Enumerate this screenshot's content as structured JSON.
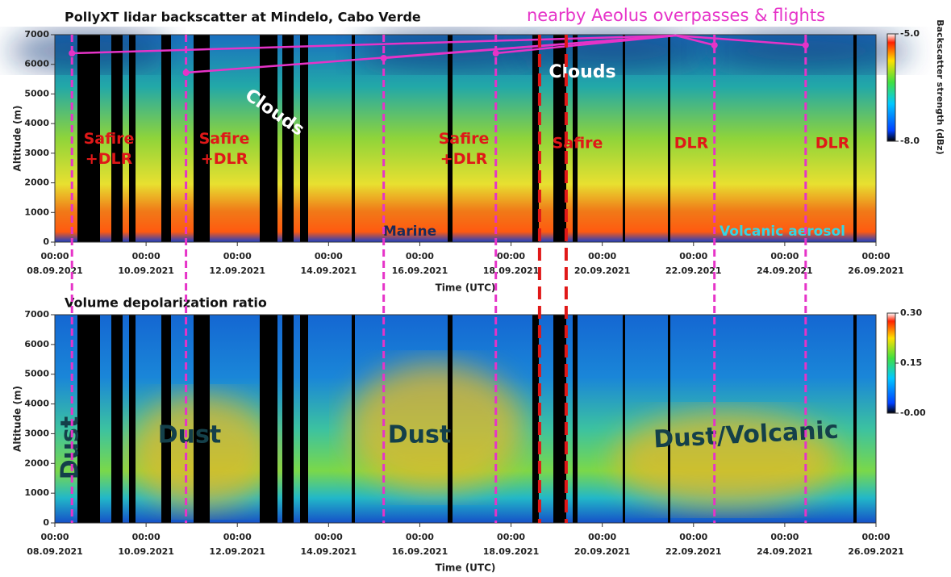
{
  "header": "nearby Aeolus overpasses & flights",
  "overpasses": [
    "2021-09-08T09:00",
    "2021-09-10T21:00",
    "2021-09-15T05:00",
    "2021-09-17T16:00",
    "2021-09-22T11:00",
    "2021-09-24T11:00"
  ],
  "overpass_color": "#e633c8",
  "flight_lines": [
    "2021-09-18T15:00",
    "2021-09-19T05:00"
  ],
  "flight_color": "#e01818",
  "chart_data": [
    {
      "type": "heatmap",
      "title": "PollyXT lidar backscatter at Mindelo, Cabo Verde",
      "xlabel": "Time (UTC)",
      "ylabel": "Altitude (m)",
      "xlim": [
        "2021-09-08T00:00",
        "2021-09-26T00:00"
      ],
      "xticks": [
        {
          "value": "2021-09-08T00:00",
          "label": [
            "00:00",
            "08.09.2021"
          ]
        },
        {
          "value": "2021-09-10T00:00",
          "label": [
            "00:00",
            "10.09.2021"
          ]
        },
        {
          "value": "2021-09-12T00:00",
          "label": [
            "00:00",
            "12.09.2021"
          ]
        },
        {
          "value": "2021-09-14T00:00",
          "label": [
            "00:00",
            "14.09.2021"
          ]
        },
        {
          "value": "2021-09-16T00:00",
          "label": [
            "00:00",
            "16.09.2021"
          ]
        },
        {
          "value": "2021-09-18T00:00",
          "label": [
            "00:00",
            "18.09.2021"
          ]
        },
        {
          "value": "2021-09-20T00:00",
          "label": [
            "00:00",
            "20.09.2021"
          ]
        },
        {
          "value": "2021-09-22T00:00",
          "label": [
            "00:00",
            "22.09.2021"
          ]
        },
        {
          "value": "2021-09-24T00:00",
          "label": [
            "00:00",
            "24.09.2021"
          ]
        },
        {
          "value": "2021-09-26T00:00",
          "label": [
            "00:00",
            "26.09.2021"
          ]
        }
      ],
      "ylim": [
        0,
        7000
      ],
      "yticks": [
        0,
        1000,
        2000,
        3000,
        4000,
        5000,
        6000,
        7000
      ],
      "colorbar_label": "Backscatter strength (dBz)",
      "clim": [
        -8,
        -5
      ],
      "cticks": [
        {
          "value": -8,
          "label": "-8.0"
        },
        {
          "value": -5,
          "label": "-5.0"
        }
      ],
      "annotations": [
        {
          "text": [
            "Clouds"
          ],
          "color": "#ffffff"
        },
        {
          "text": [
            "Clouds"
          ],
          "color": "#ffffff"
        },
        {
          "text": [
            "Safire",
            "+DLR"
          ],
          "color": "#e01818"
        },
        {
          "text": [
            "Safire",
            "+DLR"
          ],
          "color": "#e01818"
        },
        {
          "text": [
            "Safire",
            "+DLR"
          ],
          "color": "#e01818"
        },
        {
          "text": [
            "Safire"
          ],
          "color": "#e01818"
        },
        {
          "text": [
            "DLR"
          ],
          "color": "#e01818"
        },
        {
          "text": [
            "DLR"
          ],
          "color": "#e01818"
        },
        {
          "text": [
            "Marine"
          ],
          "color": "#1a2a5a"
        },
        {
          "text": [
            "Volcanic aerosol"
          ],
          "color": "#33d6e6"
        }
      ]
    },
    {
      "type": "heatmap",
      "title": "Volume depolarization ratio",
      "xlabel": "Time (UTC)",
      "ylabel": "Altitude (m)",
      "xlim": [
        "2021-09-08T00:00",
        "2021-09-26T00:00"
      ],
      "xticks": [
        {
          "value": "2021-09-08T00:00",
          "label": [
            "00:00",
            "08.09.2021"
          ]
        },
        {
          "value": "2021-09-10T00:00",
          "label": [
            "00:00",
            "10.09.2021"
          ]
        },
        {
          "value": "2021-09-12T00:00",
          "label": [
            "00:00",
            "12.09.2021"
          ]
        },
        {
          "value": "2021-09-14T00:00",
          "label": [
            "00:00",
            "14.09.2021"
          ]
        },
        {
          "value": "2021-09-16T00:00",
          "label": [
            "00:00",
            "16.09.2021"
          ]
        },
        {
          "value": "2021-09-18T00:00",
          "label": [
            "00:00",
            "18.09.2021"
          ]
        },
        {
          "value": "2021-09-20T00:00",
          "label": [
            "00:00",
            "20.09.2021"
          ]
        },
        {
          "value": "2021-09-22T00:00",
          "label": [
            "00:00",
            "22.09.2021"
          ]
        },
        {
          "value": "2021-09-24T00:00",
          "label": [
            "00:00",
            "24.09.2021"
          ]
        },
        {
          "value": "2021-09-26T00:00",
          "label": [
            "00:00",
            "26.09.2021"
          ]
        }
      ],
      "ylim": [
        0,
        7000
      ],
      "yticks": [
        0,
        1000,
        2000,
        3000,
        4000,
        5000,
        6000,
        7000
      ],
      "clim": [
        0,
        0.3
      ],
      "cticks": [
        {
          "value": 0,
          "label": "-0.00"
        },
        {
          "value": 0.15,
          "label": "0.15"
        },
        {
          "value": 0.3,
          "label": "0.30"
        }
      ],
      "annotations": [
        {
          "text": [
            "Dust"
          ],
          "color": "#14404a"
        },
        {
          "text": [
            "Dust"
          ],
          "color": "#14404a"
        },
        {
          "text": [
            "Dust"
          ],
          "color": "#14404a"
        },
        {
          "text": [
            "Dust/Volcanic"
          ],
          "color": "#14404a"
        }
      ]
    }
  ]
}
